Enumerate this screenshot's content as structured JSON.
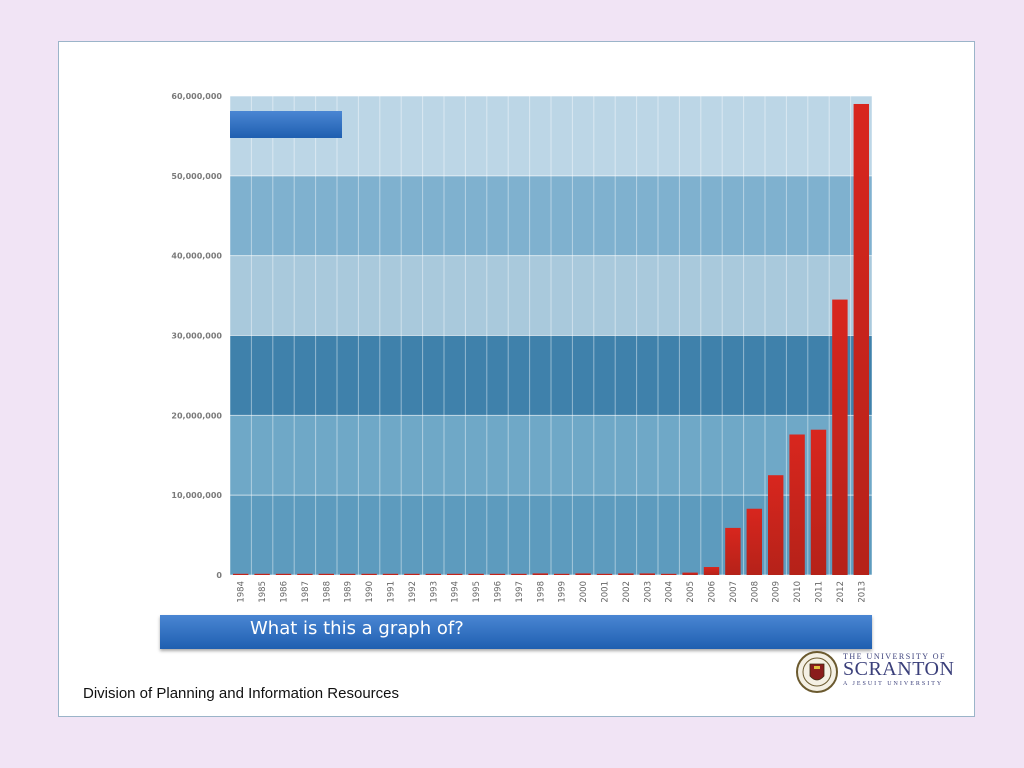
{
  "chart_data": {
    "type": "bar",
    "categories": [
      "1984",
      "1985",
      "1986",
      "1987",
      "1988",
      "1989",
      "1990",
      "1991",
      "1992",
      "1993",
      "1994",
      "1995",
      "1996",
      "1997",
      "1998",
      "1999",
      "2000",
      "2001",
      "2002",
      "2003",
      "2004",
      "2005",
      "2006",
      "2007",
      "2008",
      "2009",
      "2010",
      "2011",
      "2012",
      "2013"
    ],
    "values": [
      0,
      0,
      0,
      0,
      0,
      0,
      0,
      0,
      0,
      0,
      0,
      0,
      0,
      100000,
      200000,
      100000,
      200000,
      150000,
      200000,
      200000,
      100000,
      300000,
      1000000,
      5900000,
      8300000,
      12500000,
      17600000,
      18200000,
      34500000,
      59000000
    ],
    "ytick_labels": [
      "0",
      "10,000,000",
      "20,000,000",
      "30,000,000",
      "40,000,000",
      "50,000,000",
      "60,000,000"
    ],
    "ylim": [
      0,
      60000000
    ],
    "title": "",
    "xlabel": "",
    "ylabel": "",
    "grid": true
  },
  "question": "What is this a graph of?",
  "footer": "Division of Planning and Information Resources",
  "logo": {
    "line1": "THE UNIVERSITY OF",
    "line2": "SCRANTON",
    "line3": "A JESUIT UNIVERSITY"
  },
  "colors": {
    "background": "#f1e4f5",
    "bar": "#c3261d",
    "banner": "#2e6fc0",
    "plot_bg": "#5f9cc0"
  }
}
